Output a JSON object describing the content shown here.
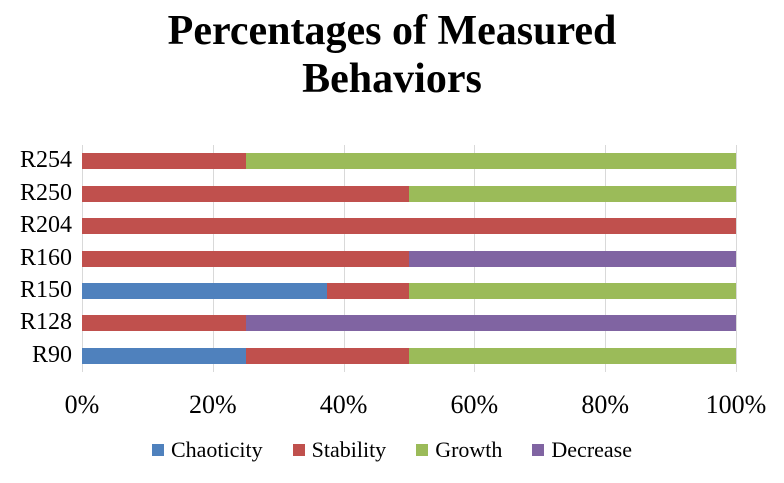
{
  "title": {
    "line1": "Percentages of Measured",
    "line2": "Behaviors"
  },
  "colors": {
    "chaoticity": "#4F81BD",
    "stability": "#C0504D",
    "growth": "#9BBB59",
    "decrease": "#8064A2",
    "gridline": "#D9D9D9",
    "text": "#000000",
    "background": "#FFFFFF"
  },
  "chart_data": {
    "type": "bar",
    "orientation": "horizontal",
    "stacked": true,
    "title": "Percentages of Measured Behaviors",
    "categories": [
      "R254",
      "R250",
      "R204",
      "R160",
      "R150",
      "R128",
      "R90"
    ],
    "series": [
      {
        "name": "Chaoticity",
        "color": "#4F81BD",
        "values": [
          0,
          0,
          0,
          0,
          37.5,
          0,
          25
        ]
      },
      {
        "name": "Stability",
        "color": "#C0504D",
        "values": [
          25,
          50,
          100,
          50,
          12.5,
          25,
          25
        ]
      },
      {
        "name": "Growth",
        "color": "#9BBB59",
        "values": [
          75,
          50,
          0,
          0,
          50,
          0,
          50
        ]
      },
      {
        "name": "Decrease",
        "color": "#8064A2",
        "values": [
          0,
          0,
          0,
          50,
          0,
          75,
          0
        ]
      }
    ],
    "x_axis": {
      "min": 0,
      "max": 100,
      "tick_labels": [
        "0%",
        "20%",
        "40%",
        "60%",
        "80%",
        "100%"
      ],
      "tick_values": [
        0,
        20,
        40,
        60,
        80,
        100
      ]
    },
    "grid": true,
    "legend_position": "bottom",
    "legend": [
      "Chaoticity",
      "Stability",
      "Growth",
      "Decrease"
    ]
  }
}
